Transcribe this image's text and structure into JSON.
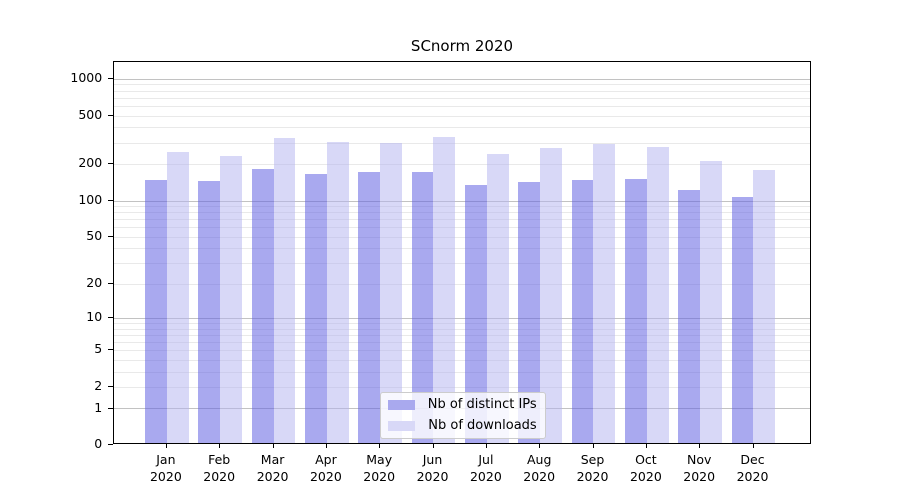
{
  "title": "SCnorm 2020",
  "chart_data": {
    "type": "bar",
    "title": "SCnorm 2020",
    "categories": [
      "Jan",
      "Feb",
      "Mar",
      "Apr",
      "May",
      "Jun",
      "Jul",
      "Aug",
      "Sep",
      "Oct",
      "Nov",
      "Dec"
    ],
    "category_year": "2020",
    "series": [
      {
        "name": "Nb of distinct IPs",
        "color": "#a9a9ee",
        "fill": "rgba(99,99,226,0.55)",
        "values": [
          144,
          142,
          178,
          163,
          170,
          168,
          133,
          141,
          144,
          149,
          120,
          106
        ]
      },
      {
        "name": "Nb of downloads",
        "color": "#d8d8f7",
        "fill": "rgba(177,177,239,0.5)",
        "values": [
          248,
          227,
          320,
          300,
          293,
          326,
          236,
          267,
          289,
          274,
          207,
          177
        ]
      }
    ],
    "xlabel": "",
    "ylabel": "",
    "yscale": "log1p",
    "ylim": [
      0,
      1380
    ],
    "grid": true,
    "legend_position": "lower center",
    "y_ticks": [
      {
        "value": 0,
        "label": "0"
      },
      {
        "value": 1,
        "label": "1"
      },
      {
        "value": 2,
        "label": "2"
      },
      {
        "value": 5,
        "label": "5"
      },
      {
        "value": 10,
        "label": "10"
      },
      {
        "value": 20,
        "label": "20"
      },
      {
        "value": 50,
        "label": "50"
      },
      {
        "value": 100,
        "label": "100"
      },
      {
        "value": 200,
        "label": "200"
      },
      {
        "value": 500,
        "label": "500"
      },
      {
        "value": 1000,
        "label": "1000"
      }
    ],
    "y_major_gridlines": [
      1,
      10,
      100,
      1000
    ],
    "y_minor_gridlines": [
      2,
      3,
      4,
      5,
      6,
      7,
      8,
      9,
      20,
      30,
      40,
      50,
      60,
      70,
      80,
      90,
      200,
      300,
      400,
      500,
      600,
      700,
      800,
      900
    ]
  },
  "colors": {
    "major_grid": "#c2c2c2",
    "minor_grid": "#e9e9e9",
    "axis": "#000000",
    "background": "#ffffff"
  }
}
